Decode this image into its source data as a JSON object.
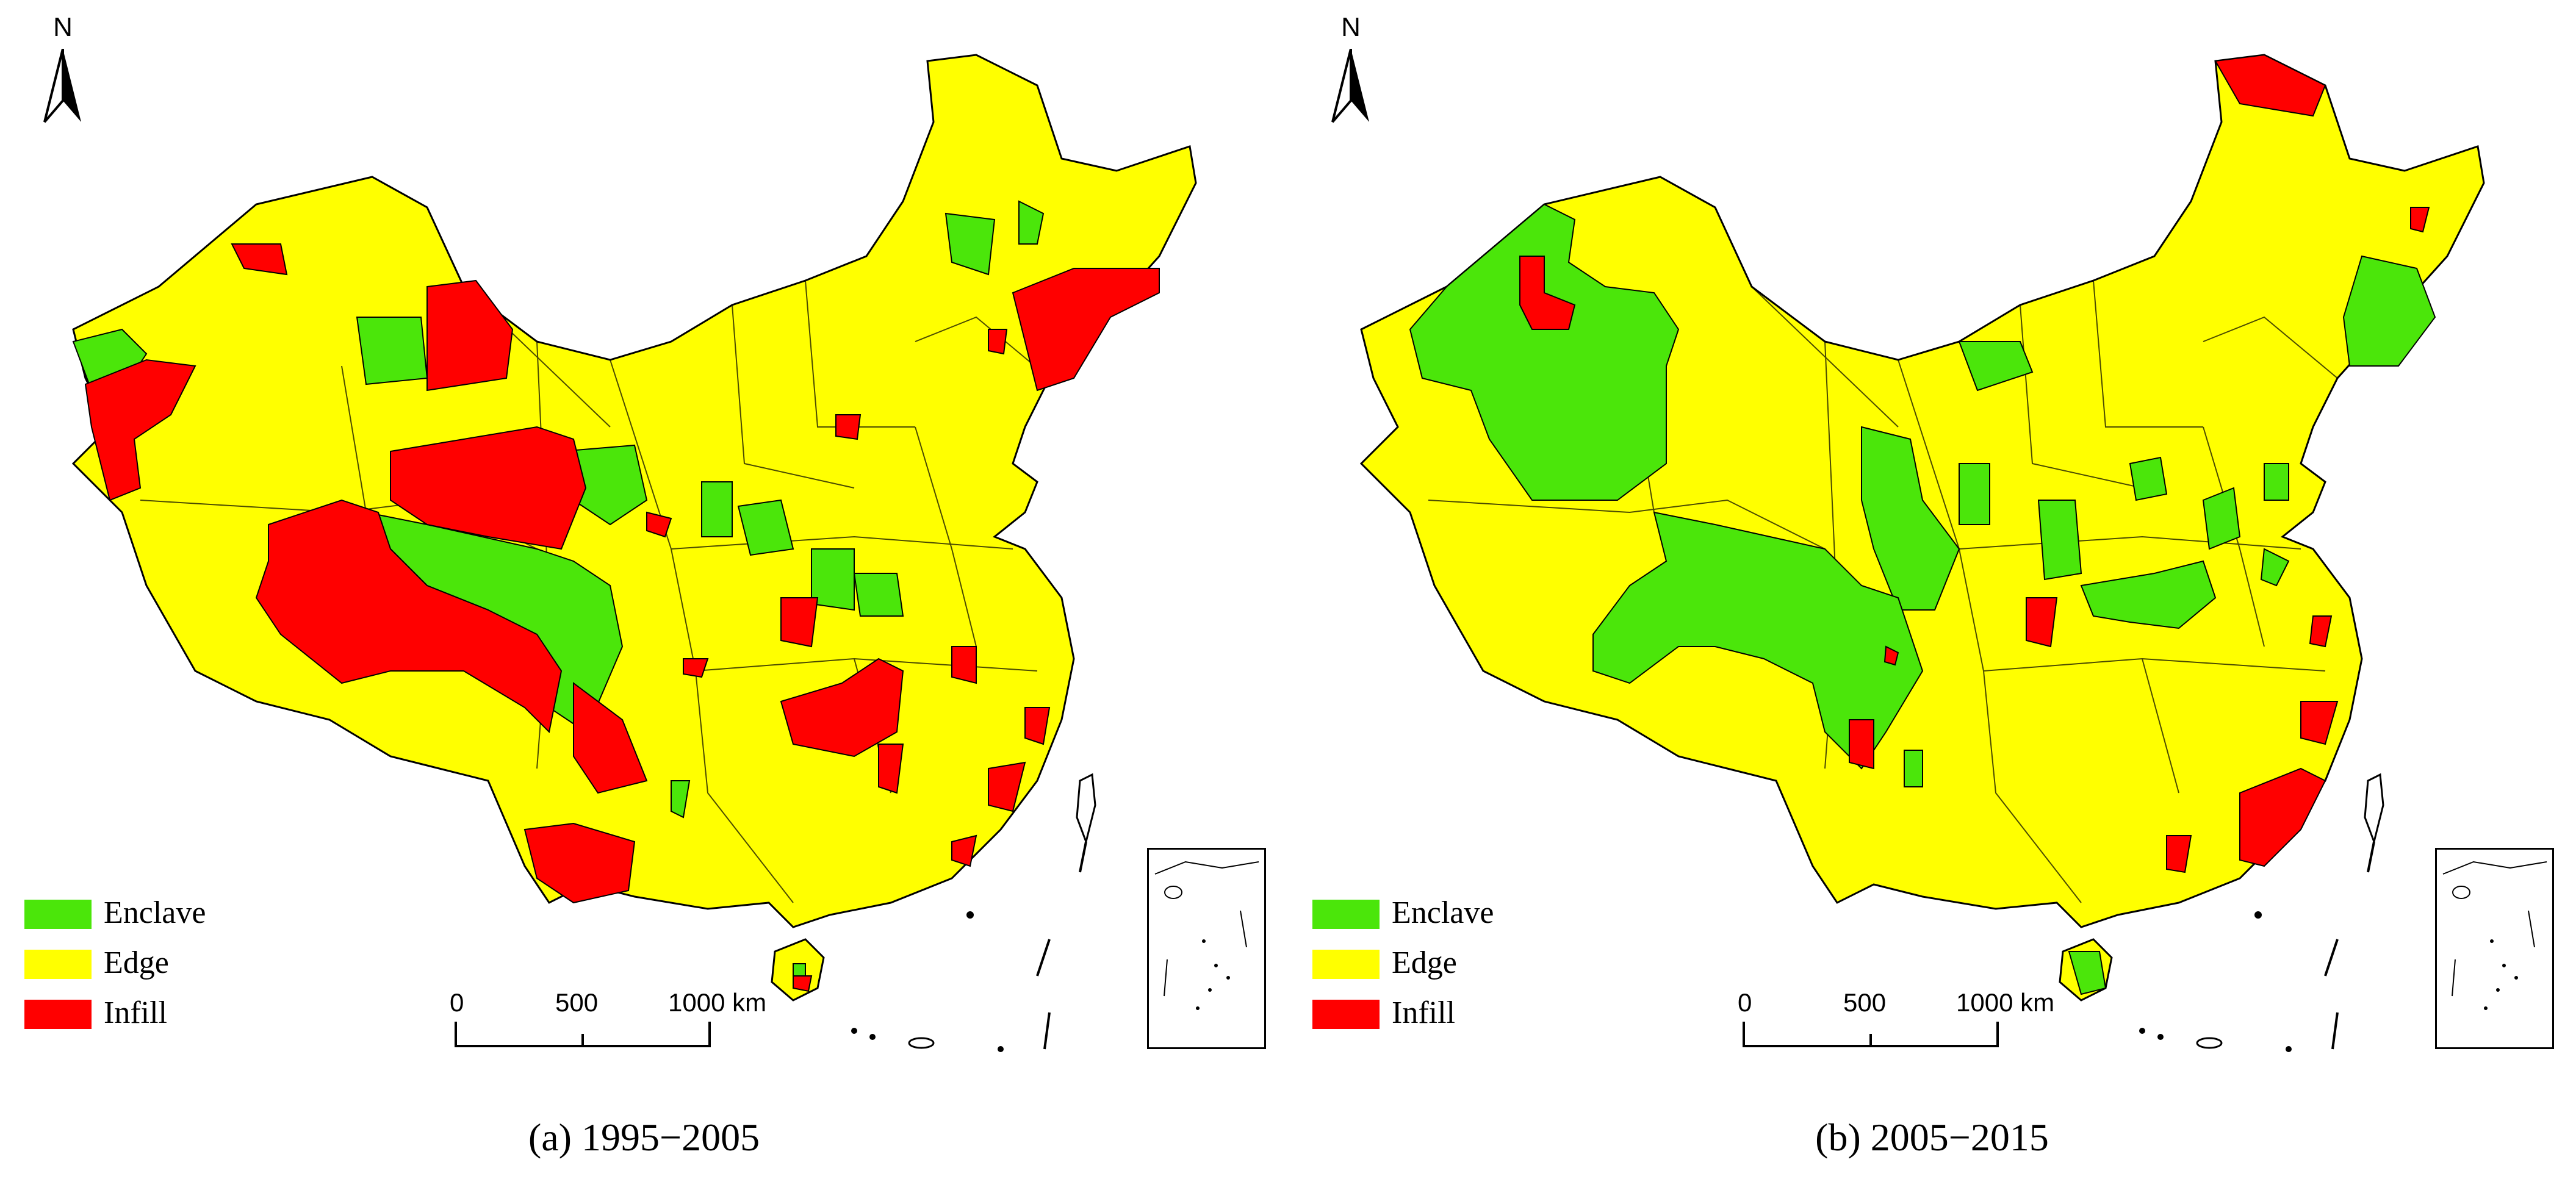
{
  "colors": {
    "enclave": "#4be60a",
    "edge": "#ffff00",
    "infill": "#ff0000",
    "boundary": "#000000",
    "background": "#ffffff"
  },
  "icons": {
    "north_arrow": "north-arrow-icon",
    "scale_bar": "scale-bar-icon"
  },
  "panels": [
    {
      "id": "a",
      "caption": "(a) 1995−2005",
      "north_label": "N",
      "legend": [
        {
          "key": "enclave",
          "label": "Enclave"
        },
        {
          "key": "edge",
          "label": "Edge"
        },
        {
          "key": "infill",
          "label": "Infill"
        }
      ],
      "scale_labels": [
        "0",
        "500",
        "1000 km"
      ]
    },
    {
      "id": "b",
      "caption": "(b) 2005−2015",
      "north_label": "N",
      "legend": [
        {
          "key": "enclave",
          "label": "Enclave"
        },
        {
          "key": "edge",
          "label": "Edge"
        },
        {
          "key": "infill",
          "label": "Infill"
        }
      ],
      "scale_labels": [
        "0",
        "500",
        "1000 km"
      ]
    }
  ]
}
